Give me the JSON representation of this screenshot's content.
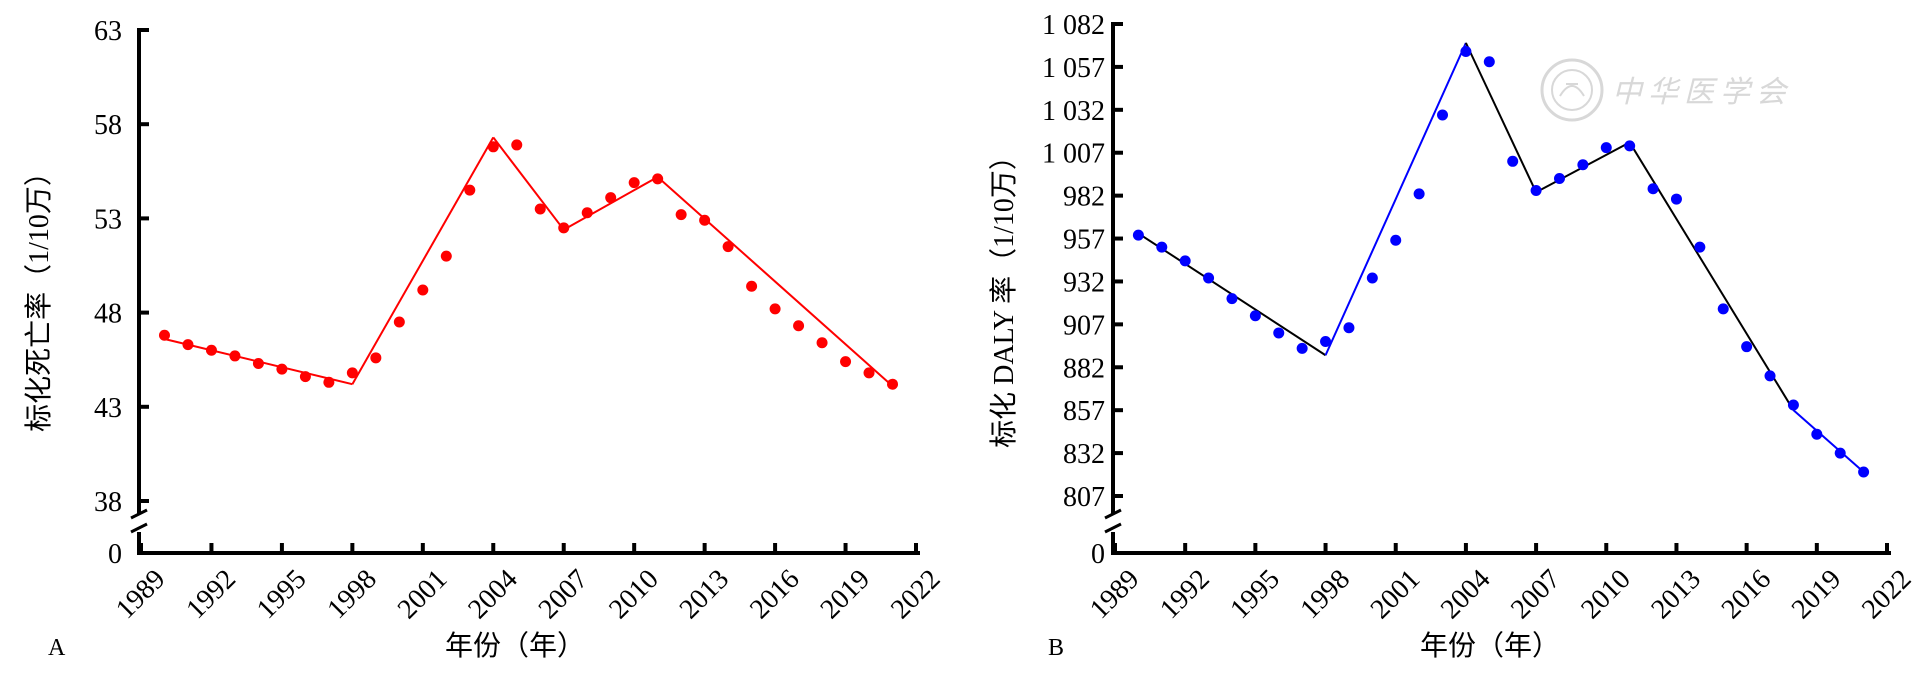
{
  "watermark": {
    "text": "中华医学会",
    "icon": "society-seal-icon",
    "color": "#d8d8d8"
  },
  "chart_data": [
    {
      "type": "scatter",
      "panel_label": "A",
      "title": "",
      "xlabel": "年份（年）",
      "ylabel": "标化死亡率（1/10万）",
      "x_ticks": [
        "1989",
        "1992",
        "1995",
        "1998",
        "2001",
        "2004",
        "2007",
        "2010",
        "2013",
        "2016",
        "2019",
        "2022"
      ],
      "y_ticks": [
        "0",
        "38",
        "43",
        "48",
        "53",
        "58",
        "63"
      ],
      "xlim": [
        1989,
        2022
      ],
      "ylim": [
        38,
        63
      ],
      "axis_break": true,
      "grid": false,
      "color": "#ff0000",
      "series": [
        {
          "kind": "points",
          "x": [
            1990,
            1991,
            1992,
            1993,
            1994,
            1995,
            1996,
            1997,
            1998,
            1999,
            2000,
            2001,
            2002,
            2003,
            2004,
            2005,
            2006,
            2007,
            2008,
            2009,
            2010,
            2011,
            2012,
            2013,
            2014,
            2015,
            2016,
            2017,
            2018,
            2019,
            2020,
            2021
          ],
          "y": [
            46.8,
            46.3,
            46.0,
            45.7,
            45.3,
            45.0,
            44.6,
            44.3,
            44.8,
            45.6,
            47.5,
            49.2,
            51.0,
            54.5,
            56.8,
            56.9,
            53.5,
            52.5,
            53.3,
            54.1,
            54.9,
            55.1,
            53.2,
            52.9,
            51.5,
            49.4,
            48.2,
            47.3,
            46.4,
            45.4,
            44.8,
            44.2
          ]
        },
        {
          "kind": "line",
          "x": [
            1990,
            1998,
            2004,
            2007,
            2011,
            2021
          ],
          "y": [
            46.6,
            44.2,
            57.3,
            52.4,
            55.2,
            44.1
          ]
        }
      ]
    },
    {
      "type": "scatter",
      "panel_label": "B",
      "title": "",
      "xlabel": "年份（年）",
      "ylabel": "标化 DALY 率（1/10万）",
      "x_ticks": [
        "1989",
        "1992",
        "1995",
        "1998",
        "2001",
        "2004",
        "2007",
        "2010",
        "2013",
        "2016",
        "2019",
        "2022"
      ],
      "y_ticks": [
        "0",
        "807",
        "832",
        "857",
        "882",
        "907",
        "932",
        "957",
        "982",
        "1 007",
        "1 032",
        "1 057",
        "1 082"
      ],
      "xlim": [
        1989,
        2022
      ],
      "ylim": [
        807,
        1082
      ],
      "axis_break": true,
      "grid": false,
      "color": "#0000ff",
      "line_colors": [
        "#000000",
        "#0000ff",
        "#000000",
        "#000000",
        "#000000"
      ],
      "series": [
        {
          "kind": "points",
          "x": [
            1990,
            1991,
            1992,
            1993,
            1994,
            1995,
            1996,
            1997,
            1998,
            1999,
            2000,
            2001,
            2002,
            2003,
            2004,
            2005,
            2006,
            2007,
            2008,
            2009,
            2010,
            2011,
            2012,
            2013,
            2014,
            2015,
            2016,
            2017,
            2018,
            2019,
            2020,
            2021
          ],
          "y": [
            959,
            952,
            944,
            934,
            922,
            912,
            902,
            893,
            897,
            905,
            934,
            956,
            983,
            1029,
            1066,
            1060,
            1002,
            985,
            992,
            1000,
            1010,
            1011,
            986,
            980,
            952,
            916,
            894,
            877,
            860,
            843,
            832,
            821
          ],
          "colors": [
            "#0000ff"
          ]
        },
        {
          "kind": "line",
          "x": [
            1990,
            1998,
            2004,
            2007,
            2011,
            2018,
            2021
          ],
          "y": [
            960,
            889,
            1071,
            984,
            1013,
            857,
            821
          ]
        }
      ]
    }
  ]
}
